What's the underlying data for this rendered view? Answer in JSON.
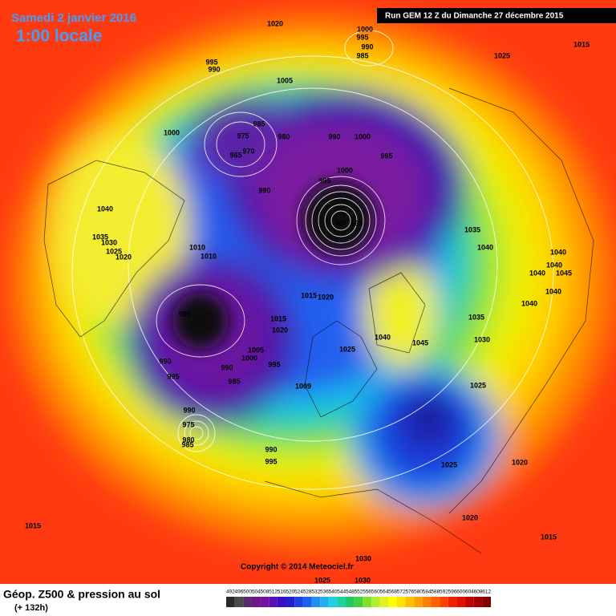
{
  "header": {
    "date": "Samedi 2 janvier 2016",
    "time": "1:00 locale",
    "run": "Run GEM 12 Z du Dimanche 27 décembre 2015"
  },
  "copyright": "Copyright © 2014 Meteociel.fr",
  "footer": {
    "title": "Géop. Z500 & pression au sol",
    "lead": "(+ 132h)"
  },
  "color_scale": [
    492,
    496,
    500,
    504,
    508,
    512,
    516,
    520,
    524,
    528,
    532,
    536,
    540,
    544,
    548,
    552,
    556,
    560,
    564,
    568,
    572,
    576,
    580,
    584,
    588,
    592,
    596,
    600,
    604,
    608,
    612
  ],
  "pressure_labels": [
    1020,
    1000,
    995,
    990,
    985,
    1025,
    1015,
    995,
    990,
    1005,
    1000,
    985,
    975,
    980,
    970,
    965,
    990,
    1000,
    995,
    1000,
    995,
    990,
    960,
    965,
    1040,
    1035,
    1030,
    1025,
    1020,
    1010,
    1010,
    1035,
    1040,
    1040,
    1040,
    1045,
    1040,
    1040,
    1040,
    1015,
    1020,
    990,
    1015,
    1020,
    1040,
    1045,
    1035,
    1030,
    1025,
    1005,
    1000,
    995,
    990,
    990,
    985,
    995,
    1009,
    1025,
    990,
    975,
    980,
    985,
    990,
    995,
    1025,
    1020,
    1020,
    1015,
    1015,
    1030,
    1025,
    1030
  ]
}
